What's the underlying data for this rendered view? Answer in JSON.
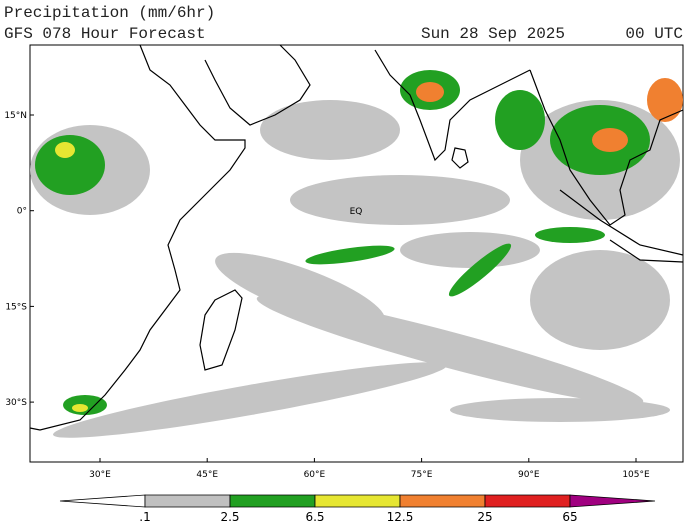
{
  "header": {
    "title": "Precipitation (mm/6hr)",
    "subtitle": "GFS 078 Hour Forecast",
    "date": "Sun 28 Sep 2025",
    "time": "00 UTC"
  },
  "map": {
    "lat_labels": [
      "15°N",
      "0°",
      "15°S",
      "30°S"
    ],
    "lon_labels": [
      "30°E",
      "45°E",
      "60°E",
      "75°E",
      "90°E",
      "105°E"
    ],
    "equator_label": "EQ"
  },
  "legend": {
    "labels": [
      ".1",
      "2.5",
      "6.5",
      "12.5",
      "25",
      "65"
    ],
    "colors": [
      "#ffffff",
      "#c0c0c0",
      "#22a022",
      "#e6e632",
      "#f08030",
      "#e02020",
      "#a00080"
    ]
  }
}
